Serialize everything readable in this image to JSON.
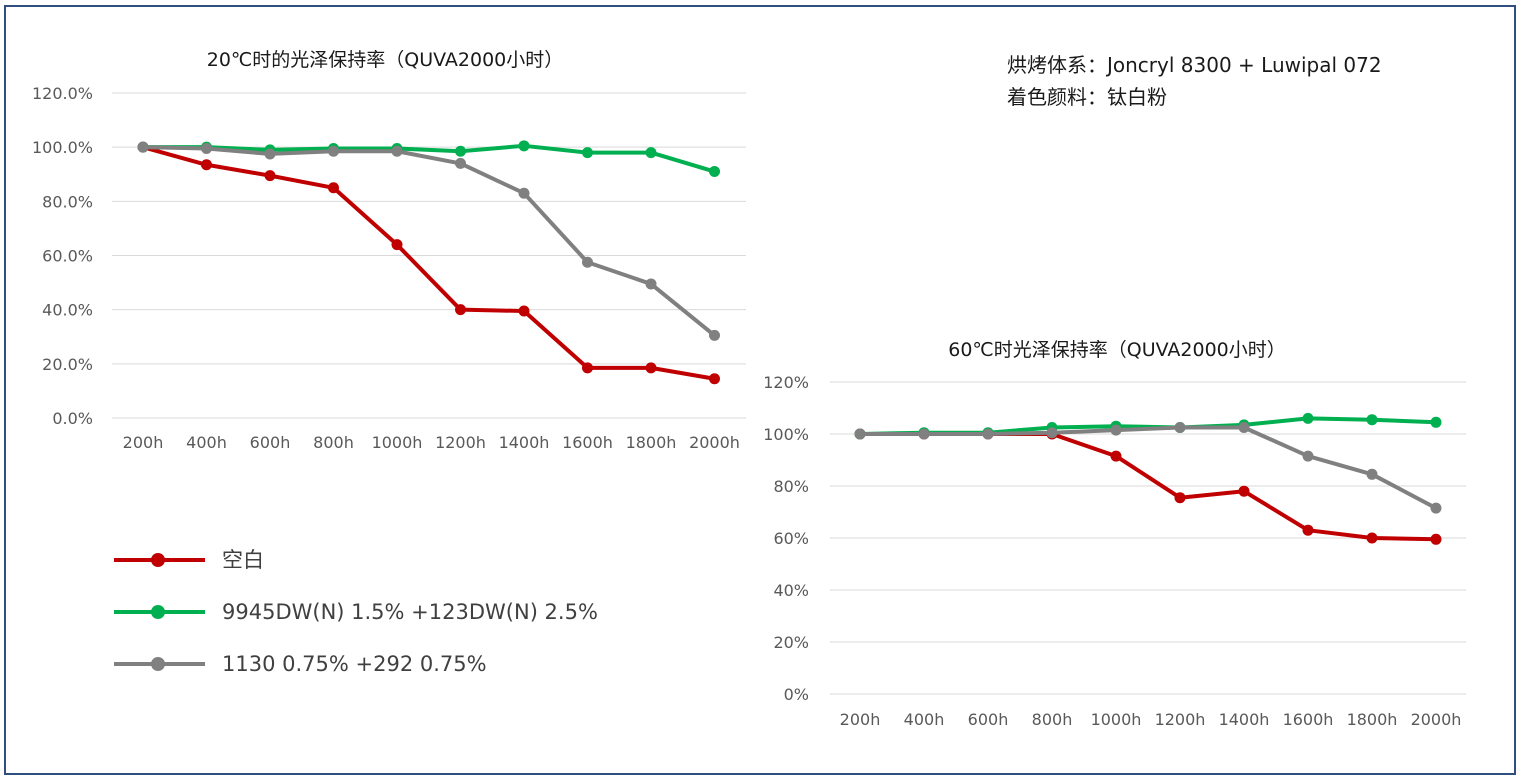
{
  "header_note": {
    "line1": "烘烤体系：Joncryl  8300 + Luwipal 072",
    "line2": "着色颜料：钛白粉"
  },
  "legend": [
    {
      "label": "空白",
      "color": "#c00000"
    },
    {
      "label": "9945DW(N) 1.5% +123DW(N) 2.5%",
      "color": "#00b050"
    },
    {
      "label": "1130 0.75% +292 0.75%",
      "color": "#808080"
    }
  ],
  "chart_data": [
    {
      "type": "line",
      "title": "20℃时的光泽保持率（QUVA2000小时）",
      "categories": [
        "200h",
        "400h",
        "600h",
        "800h",
        "1000h",
        "1200h",
        "1400h",
        "1600h",
        "1800h",
        "2000h"
      ],
      "ylim": [
        0,
        120
      ],
      "yticks": [
        0,
        20,
        40,
        60,
        80,
        100,
        120
      ],
      "ytick_labels": [
        "0.0%",
        "20.0%",
        "40.0%",
        "60.0%",
        "80.0%",
        "100.0%",
        "120.0%"
      ],
      "grid": true,
      "series": [
        {
          "name": "空白",
          "color": "#c00000",
          "values": [
            100,
            93.5,
            89.5,
            85,
            64,
            40,
            39.5,
            18.5,
            18.5,
            14.5
          ]
        },
        {
          "name": "9945DW(N) 1.5% +123DW(N) 2.5%",
          "color": "#00b050",
          "values": [
            100,
            100,
            99,
            99.5,
            99.5,
            98.5,
            100.5,
            98,
            98,
            91
          ]
        },
        {
          "name": "1130 0.75% +292 0.75%",
          "color": "#808080",
          "values": [
            100,
            99.5,
            97.5,
            98.5,
            98.5,
            94,
            83,
            57.5,
            49.5,
            30.5
          ]
        }
      ]
    },
    {
      "type": "line",
      "title": "60℃时光泽保持率（QUVA2000小时）",
      "categories": [
        "200h",
        "400h",
        "600h",
        "800h",
        "1000h",
        "1200h",
        "1400h",
        "1600h",
        "1800h",
        "2000h"
      ],
      "ylim": [
        0,
        120
      ],
      "yticks": [
        0,
        20,
        40,
        60,
        80,
        100,
        120
      ],
      "ytick_labels": [
        "0%",
        "20%",
        "40%",
        "60%",
        "80%",
        "100%",
        "120%"
      ],
      "grid": true,
      "series": [
        {
          "name": "空白",
          "color": "#c00000",
          "values": [
            100,
            100,
            100,
            100,
            91.5,
            75.5,
            78,
            63,
            60,
            59.5
          ]
        },
        {
          "name": "9945DW(N) 1.5% +123DW(N) 2.5%",
          "color": "#00b050",
          "values": [
            100,
            100.5,
            100.5,
            102.5,
            103,
            102.5,
            103.5,
            106,
            105.5,
            104.5
          ]
        },
        {
          "name": "1130 0.75% +292 0.75%",
          "color": "#808080",
          "values": [
            100,
            100,
            100,
            100.5,
            101.5,
            102.5,
            102.5,
            91.5,
            84.5,
            71.5
          ]
        }
      ]
    }
  ]
}
